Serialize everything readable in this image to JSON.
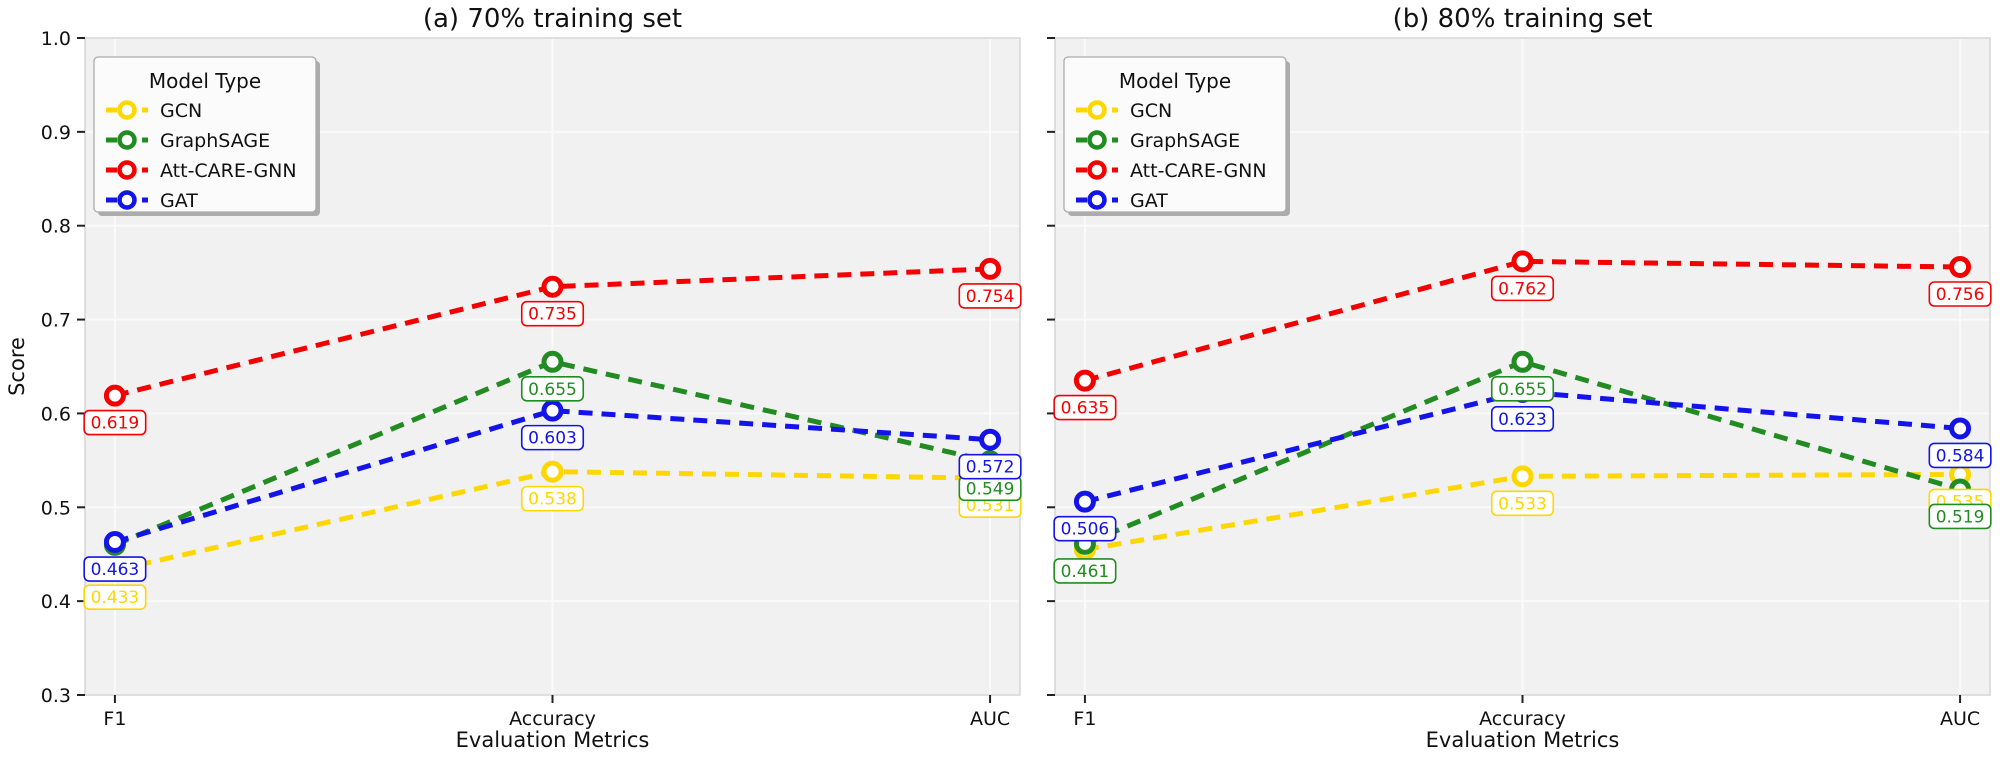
{
  "figure": {
    "description": "Two side-by-side line charts comparing GNN model scores across evaluation metrics",
    "shared_ylabel": "Score",
    "shared_xlabel": "Evaluation Metrics"
  },
  "chart_data": [
    {
      "type": "line",
      "title": "(a) 70% training set",
      "xlabel": "Evaluation Metrics",
      "ylabel": "Score",
      "categories": [
        "F1",
        "Accuracy",
        "AUC"
      ],
      "ylim": [
        0.3,
        1.0
      ],
      "ytick_step": 0.1,
      "grid": true,
      "line_style": "dashed",
      "marker": "open-circle",
      "legend": {
        "title": "Model Type",
        "position": "upper-left"
      },
      "series": [
        {
          "name": "GCN",
          "color": "#FFD700",
          "values": [
            0.433,
            0.538,
            0.531
          ],
          "point_labels": [
            "0.433",
            "0.538",
            "0.531"
          ]
        },
        {
          "name": "GraphSAGE",
          "color": "#228B22",
          "values": [
            0.46,
            0.655,
            0.549
          ],
          "point_labels": [
            null,
            "0.655",
            "0.549"
          ]
        },
        {
          "name": "Att-CARE-GNN",
          "color": "#F40000",
          "values": [
            0.619,
            0.735,
            0.754
          ],
          "point_labels": [
            "0.619",
            "0.735",
            "0.754"
          ]
        },
        {
          "name": "GAT",
          "color": "#1414E8",
          "values": [
            0.463,
            0.603,
            0.572
          ],
          "point_labels": [
            "0.463",
            "0.603",
            "0.572"
          ]
        }
      ]
    },
    {
      "type": "line",
      "title": "(b) 80% training set",
      "xlabel": "Evaluation Metrics",
      "ylabel": "Score",
      "categories": [
        "F1",
        "Accuracy",
        "AUC"
      ],
      "ylim": [
        0.3,
        1.0
      ],
      "ytick_step": 0.1,
      "grid": true,
      "line_style": "dashed",
      "marker": "open-circle",
      "legend": {
        "title": "Model Type",
        "position": "upper-left"
      },
      "series": [
        {
          "name": "GCN",
          "color": "#FFD700",
          "values": [
            0.455,
            0.533,
            0.535
          ],
          "point_labels": [
            null,
            "0.533",
            "0.535"
          ]
        },
        {
          "name": "GraphSAGE",
          "color": "#228B22",
          "values": [
            0.461,
            0.655,
            0.519
          ],
          "point_labels": [
            "0.461",
            "0.655",
            "0.519"
          ]
        },
        {
          "name": "Att-CARE-GNN",
          "color": "#F40000",
          "values": [
            0.635,
            0.762,
            0.756
          ],
          "point_labels": [
            "0.635",
            "0.762",
            "0.756"
          ]
        },
        {
          "name": "GAT",
          "color": "#1414E8",
          "values": [
            0.506,
            0.623,
            0.584
          ],
          "point_labels": [
            "0.506",
            "0.623",
            "0.584"
          ]
        }
      ]
    }
  ],
  "style": {
    "plot_bg": "#f1f1f2",
    "grid_color": "#fafafa",
    "spine_color": "#d6d6d6",
    "tick_color": "#222222",
    "text_color": "#111111",
    "legend_bg": "#fbfbfb",
    "legend_border": "#ababab",
    "legend_shadow": "#9b9b9b",
    "label_box_bg": "#ffffff",
    "marker_fill": "#ffffff"
  }
}
